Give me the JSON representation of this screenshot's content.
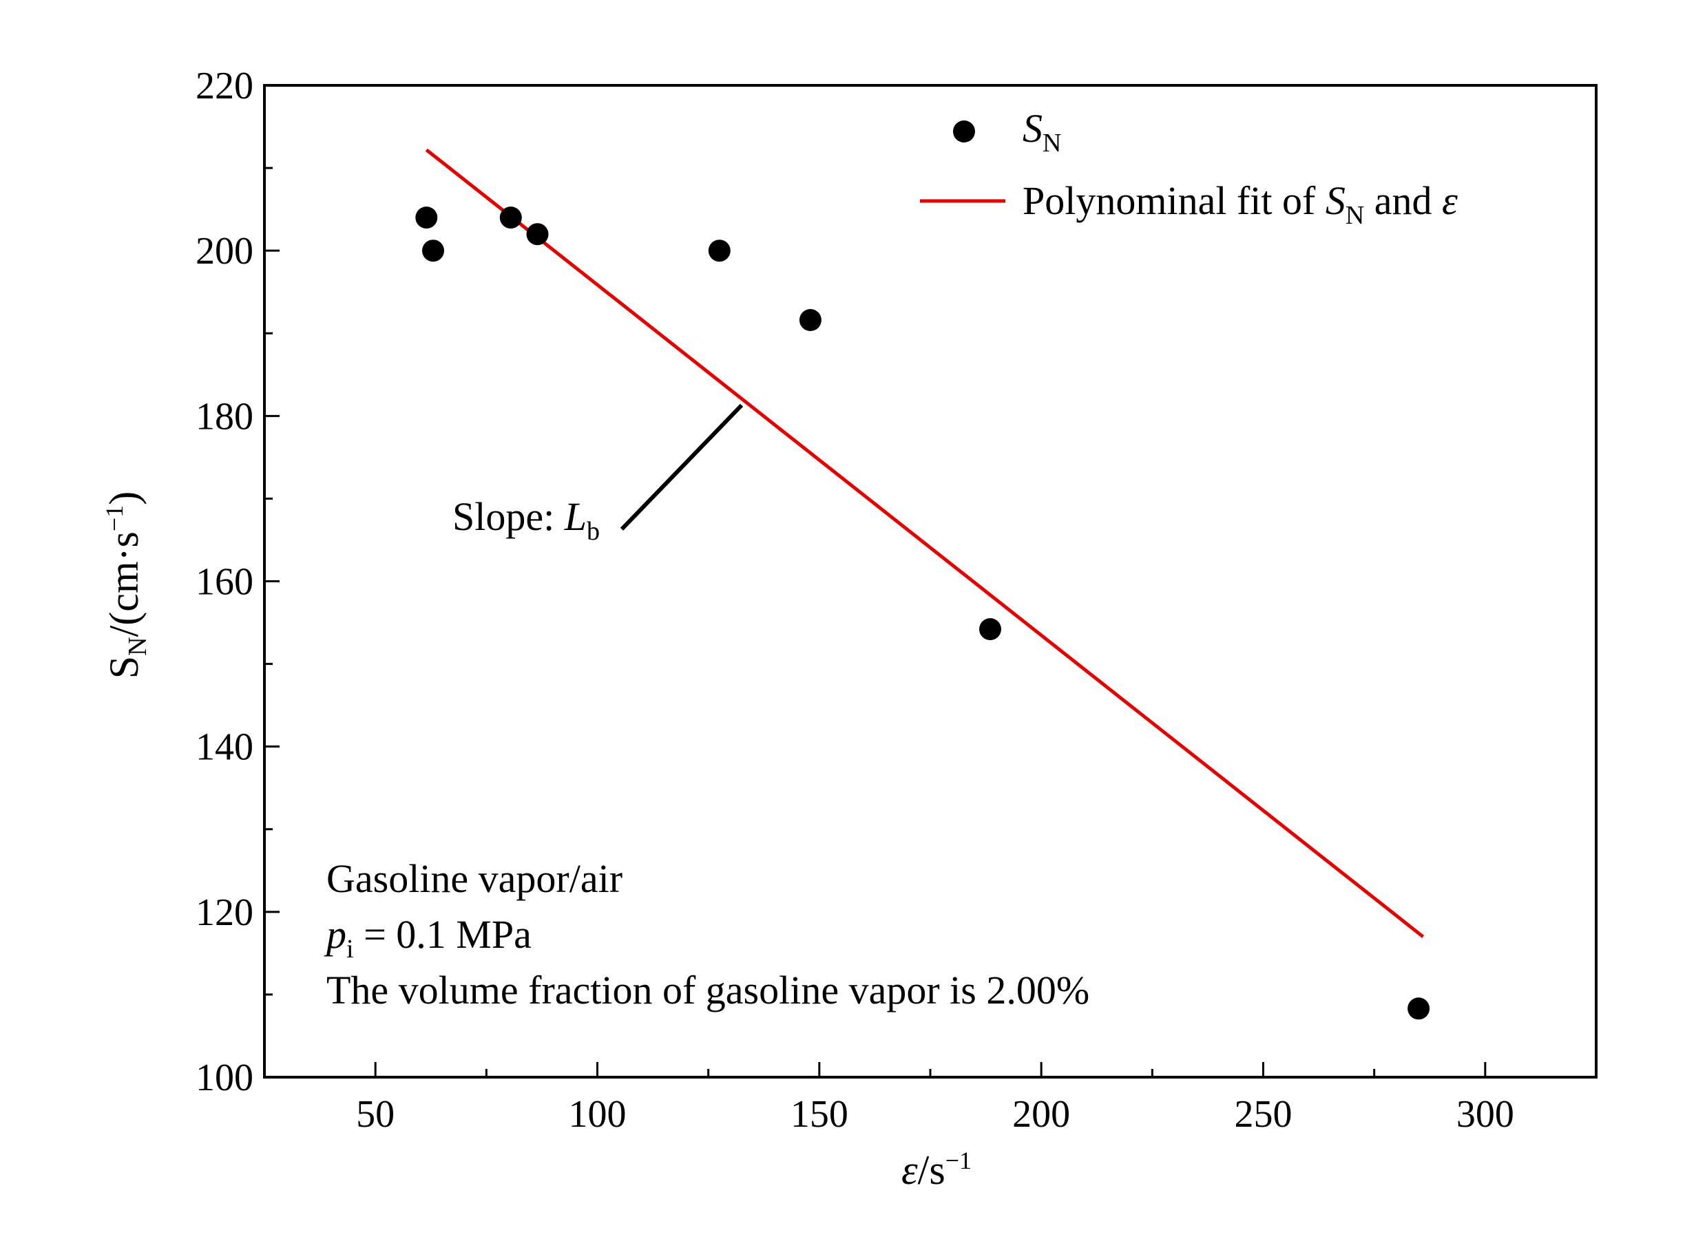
{
  "chart_data": {
    "type": "scatter",
    "xlabel": {
      "symbol": "ε",
      "unit": "/s",
      "sup": "−1"
    },
    "ylabel": {
      "symbol": "S",
      "sub": "N",
      "unit": "/(cm·s",
      "sup": "−1",
      "close": ")"
    },
    "xlim": [
      25,
      325
    ],
    "ylim": [
      100,
      220
    ],
    "x_ticks": [
      50,
      100,
      150,
      200,
      250,
      300
    ],
    "x_tick_labels": [
      "50",
      "100",
      "150",
      "200",
      "250",
      "300"
    ],
    "x_minor_ticks": [
      75,
      125,
      175,
      225,
      275
    ],
    "y_ticks": [
      100,
      120,
      140,
      160,
      180,
      200,
      220
    ],
    "y_tick_labels": [
      "100",
      "120",
      "140",
      "160",
      "180",
      "200",
      "220"
    ],
    "y_minor_ticks": [
      110,
      130,
      150,
      170,
      190,
      210
    ],
    "grid": false,
    "legend_position": "top-right",
    "series": [
      {
        "kind": "scatter",
        "color": "#000000",
        "legend": {
          "main": "S",
          "sub": "N"
        },
        "x": [
          61.5,
          63,
          80.5,
          86.5,
          127.5,
          148,
          188.5,
          285
        ],
        "y": [
          204,
          200,
          204,
          202,
          200,
          191.6,
          154.2,
          108.3
        ]
      },
      {
        "kind": "line",
        "color": "#e60000",
        "legend": {
          "text": "Polynominal fit of ",
          "sym1": "S",
          "sub1": "N",
          "mid": " and ",
          "sym2": "ε"
        },
        "x": [
          61.5,
          286
        ],
        "y": [
          212.2,
          117
        ]
      }
    ],
    "annotations": {
      "slope": {
        "prefix": "Slope: ",
        "symbol": "L",
        "sub": "b",
        "pointer_from": [
          132.5,
          181.3
        ],
        "pointer_to": [
          105.5,
          166.3
        ]
      },
      "conditions": {
        "line1": "Gasoline vapor/air",
        "line2": {
          "symbol": "p",
          "sub": "i",
          "rest": " = 0.1 MPa"
        },
        "line3": "The volume fraction of gasoline vapor is 2.00%"
      }
    }
  }
}
